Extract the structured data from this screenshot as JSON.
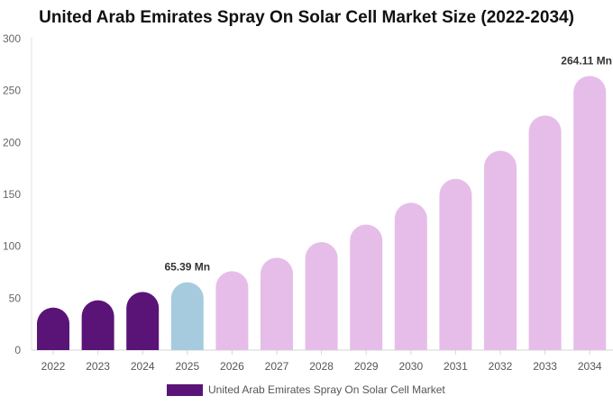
{
  "chart_data": {
    "type": "bar",
    "title": "United Arab Emirates Spray On Solar Cell Market Size (2022-2034)",
    "categories": [
      "2022",
      "2023",
      "2024",
      "2025",
      "2026",
      "2027",
      "2028",
      "2029",
      "2030",
      "2031",
      "2032",
      "2033",
      "2034"
    ],
    "series": [
      {
        "name": "United Arab Emirates Spray On Solar Cell Market",
        "values": [
          41,
          48,
          56,
          65.39,
          76,
          89,
          104,
          121,
          142,
          165,
          192,
          226,
          264.11
        ]
      }
    ],
    "bar_colors": [
      "#5a1478",
      "#5a1478",
      "#5a1478",
      "#a6cbdf",
      "#e6bde8",
      "#e6bde8",
      "#e6bde8",
      "#e6bde8",
      "#e6bde8",
      "#e6bde8",
      "#e6bde8",
      "#e6bde8",
      "#e6bde8"
    ],
    "data_labels": [
      {
        "category": "2025",
        "text": "65.39 Mn"
      },
      {
        "category": "2034",
        "text": "264.11 Mn"
      }
    ],
    "ylim": [
      0,
      300
    ],
    "yticks": [
      0,
      50,
      100,
      150,
      200,
      250,
      300
    ],
    "grid": false,
    "legend_position": "bottom"
  }
}
